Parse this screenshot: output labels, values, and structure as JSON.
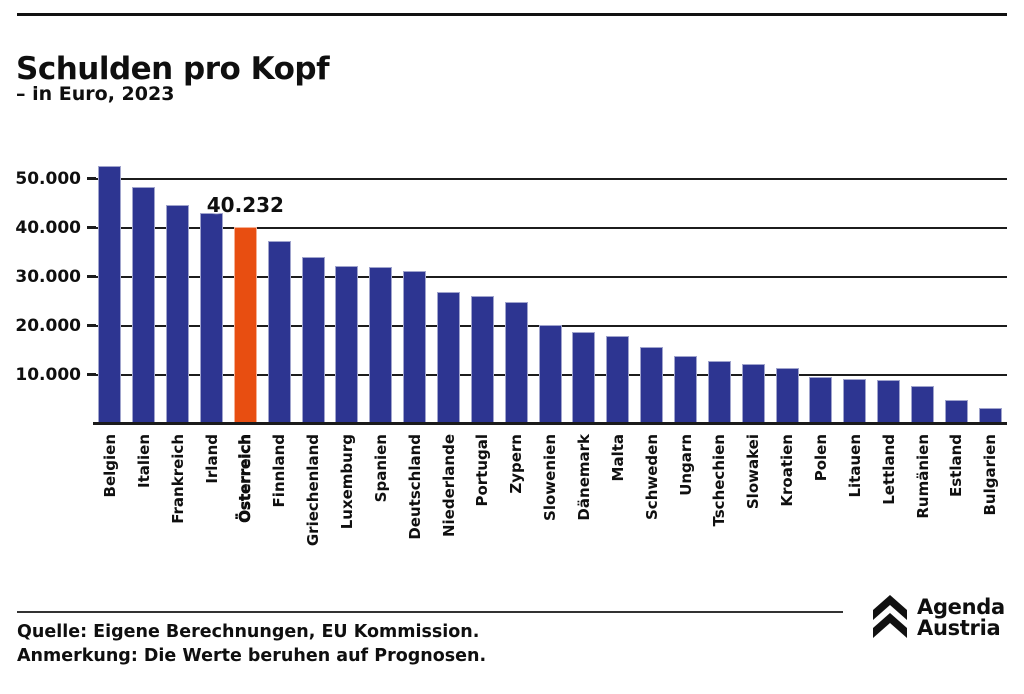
{
  "header": {
    "title": "Schulden pro Kopf",
    "subtitle": "– in Euro, 2023"
  },
  "chart_data": {
    "type": "bar",
    "title": "Schulden pro Kopf",
    "subtitle": "– in Euro, 2023",
    "unit": "Euro pro Kopf",
    "categories": [
      "Belgien",
      "Italien",
      "Frankreich",
      "Irland",
      "Österreich",
      "Finnland",
      "Griechenland",
      "Luxemburg",
      "Spanien",
      "Deutschland",
      "Niederlande",
      "Portugal",
      "Zypern",
      "Slowenien",
      "Dänemark",
      "Malta",
      "Schweden",
      "Ungarn",
      "Tschechien",
      "Slowakei",
      "Kroatien",
      "Polen",
      "Litauen",
      "Lettland",
      "Rumänien",
      "Estland",
      "Bulgarien"
    ],
    "values": [
      52600,
      48400,
      44800,
      43000,
      40232,
      37400,
      34100,
      32300,
      32100,
      31200,
      26900,
      26100,
      25000,
      20200,
      18700,
      17900,
      15700,
      13900,
      12800,
      12200,
      11400,
      9500,
      9200,
      8900,
      7800,
      5000,
      3300
    ],
    "highlight": {
      "category": "Österreich",
      "value": 40232,
      "label": "40.232"
    },
    "colors": {
      "bar": "#2d3591",
      "highlight": "#e84e11",
      "grid": "#1c1c1c"
    },
    "yticks": [
      {
        "label": "10.000",
        "value": 10000
      },
      {
        "label": "20.000",
        "value": 20000
      },
      {
        "label": "30.000",
        "value": 30000
      },
      {
        "label": "40.000",
        "value": 40000
      },
      {
        "label": "50.000",
        "value": 50000
      }
    ],
    "ylim": [
      0,
      54900
    ],
    "grid": "horizontal",
    "legend": "none"
  },
  "footer": {
    "source": "Quelle: Eigene Berechnungen, EU Kommission.",
    "note": "Anmerkung: Die Werte beruhen auf Prognosen."
  },
  "logo": {
    "line1": "Agenda",
    "line2": "Austria"
  }
}
